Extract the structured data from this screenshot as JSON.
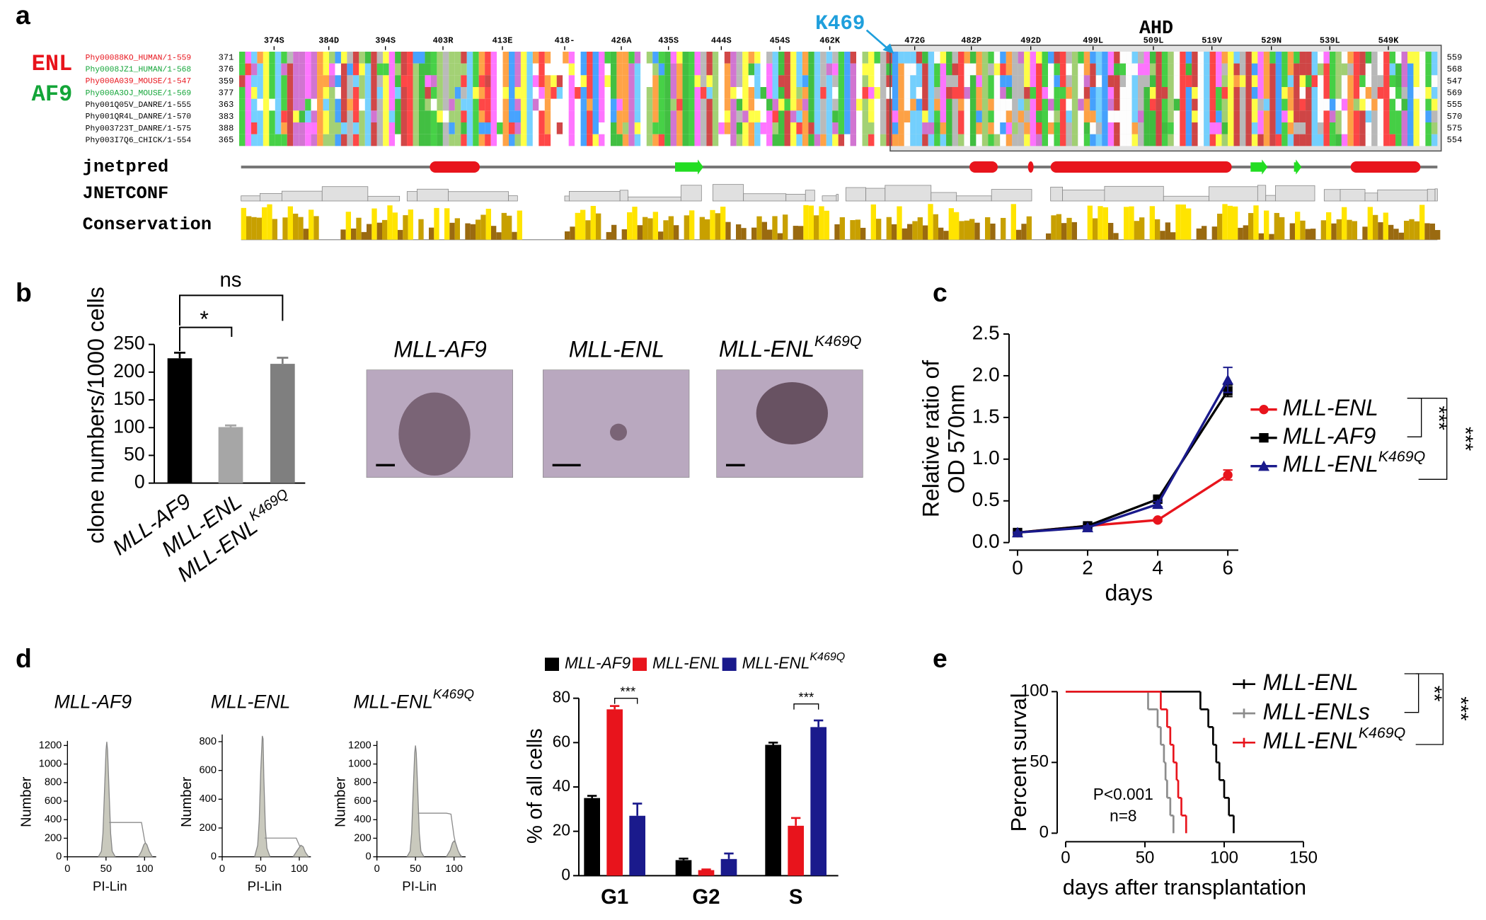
{
  "panel_labels": [
    "a",
    "b",
    "c",
    "d",
    "e"
  ],
  "alignment": {
    "positions": [
      "374S",
      "384D",
      "394S",
      "403R",
      "413E",
      "418-",
      "426A",
      "435S",
      "444S",
      "454S",
      "462K",
      "472G",
      "482P",
      "492D",
      "499L",
      "509L",
      "519V",
      "529N",
      "539L",
      "549K"
    ],
    "groups": [
      {
        "label": "ENL",
        "color": "#e8141c"
      },
      {
        "label": "AF9",
        "color": "#13a538"
      }
    ],
    "mutation": "K469",
    "domain": "AHD",
    "sequences": [
      {
        "name": "Phy00088KO_HUMAN/1-559",
        "start": 371,
        "end": 559,
        "color": "#e8141c"
      },
      {
        "name": "Phy0008JZ1_HUMAN/1-568",
        "start": 376,
        "end": 568,
        "color": "#13a538"
      },
      {
        "name": "Phy000A039_MOUSE/1-547",
        "start": 359,
        "end": 547,
        "color": "#e8141c"
      },
      {
        "name": "Phy000A3OJ_MOUSE/1-569",
        "start": 377,
        "end": 569,
        "color": "#13a538"
      },
      {
        "name": "Phy001Q05V_DANRE/1-555",
        "start": 363,
        "end": 555,
        "color": "#000000"
      },
      {
        "name": "Phy001QR4L_DANRE/1-570",
        "start": 383,
        "end": 570,
        "color": "#000000"
      },
      {
        "name": "Phy003723T_DANRE/1-575",
        "start": 388,
        "end": 575,
        "color": "#000000"
      },
      {
        "name": "Phy003I7Q6_CHICK/1-554",
        "start": 365,
        "end": 554,
        "color": "#000000"
      }
    ],
    "tracks": [
      "jnetpred",
      "JNETCONF",
      "Conservation"
    ]
  },
  "colony_images": [
    "MLL-AF9",
    "MLL-ENL",
    {
      "text": "MLL-ENL",
      "sup": "K469Q"
    }
  ],
  "chart_data": [
    {
      "type": "bar",
      "ylabel": "clone numbers/1000 cells",
      "categories": [
        "MLL-AF9",
        "MLL-ENL",
        {
          "text": "MLL-ENL",
          "sup": "K469Q"
        }
      ],
      "values": [
        225,
        101,
        215
      ],
      "errors": [
        10,
        3,
        11
      ],
      "colors": [
        "#000000",
        "#a6a6a6",
        "#7f7f7f"
      ],
      "ylim": [
        0,
        250
      ],
      "yticks": [
        0,
        50,
        100,
        150,
        200,
        250
      ],
      "annotations": [
        "*",
        "ns"
      ]
    },
    {
      "type": "line",
      "xlabel": "days",
      "ylabel": [
        "Relative ratio of",
        "OD 570nm"
      ],
      "x": [
        0,
        2,
        4,
        6
      ],
      "xlim": [
        0,
        6.3
      ],
      "xticks": [
        0,
        2,
        4,
        6
      ],
      "ylim": [
        0,
        2.5
      ],
      "yticks": [
        {
          "value": 0,
          "label": "0.0"
        },
        0.5,
        {
          "value": 1,
          "label": "1.0"
        },
        1.5,
        {
          "value": 2,
          "label": "2.0"
        },
        2.5
      ],
      "series": [
        {
          "name": "MLL-ENL",
          "color": "#e8141c",
          "marker": "circle",
          "values": [
            0.12,
            0.2,
            0.27,
            0.81
          ],
          "errors": [
            0.005,
            0.02,
            0.015,
            0.06
          ]
        },
        {
          "name": "MLL-AF9",
          "color": "#000000",
          "marker": "square",
          "values": [
            0.12,
            0.2,
            0.52,
            1.82
          ],
          "errors": [
            0.005,
            0.02,
            0.03,
            0.07
          ]
        },
        {
          "name": {
            "text": "MLL-ENL",
            "sup": "K469Q"
          },
          "color": "#1a1a8c",
          "marker": "triangle",
          "values": [
            0.12,
            0.18,
            0.46,
            1.95
          ],
          "errors": [
            0.005,
            0.02,
            0.03,
            0.15
          ]
        }
      ],
      "annotations": [
        "***",
        "***"
      ]
    },
    {
      "type": "area",
      "title": "MLL-AF9",
      "xlabel": "PI-Lin",
      "ylabel": "Number",
      "xlim": [
        0,
        115
      ],
      "xticks": [
        0,
        50,
        100
      ],
      "ylim": [
        0,
        1250
      ],
      "yticks": [
        0,
        200,
        400,
        600,
        800,
        1000,
        1200
      ],
      "series": [
        {
          "color": "#c9c9bd",
          "x": [
            40,
            44,
            46,
            48,
            50,
            51,
            52,
            54,
            56,
            58,
            62
          ],
          "values": [
            0,
            60,
            250,
            700,
            1150,
            1240,
            1150,
            700,
            250,
            60,
            0
          ]
        },
        {
          "color": "#8c8c8c",
          "x": [
            54,
            60,
            90,
            96,
            100,
            104,
            110
          ],
          "values": [
            370,
            370,
            370,
            370,
            180,
            60,
            0
          ]
        },
        {
          "color": "#c9c9bd",
          "x": [
            92,
            96,
            99,
            101,
            103,
            106,
            110
          ],
          "values": [
            0,
            60,
            130,
            150,
            130,
            60,
            0
          ]
        }
      ]
    },
    {
      "type": "area",
      "title": "MLL-ENL",
      "xlabel": "PI-Lin",
      "ylabel": "Number",
      "xlim": [
        0,
        115
      ],
      "xticks": [
        0,
        50,
        100
      ],
      "ylim": [
        0,
        850
      ],
      "yticks": [
        0,
        200,
        400,
        600,
        800
      ],
      "series": [
        {
          "color": "#c9c9bd",
          "x": [
            42,
            46,
            48,
            50,
            52,
            53,
            54,
            56,
            58,
            62
          ],
          "values": [
            0,
            80,
            250,
            600,
            840,
            820,
            550,
            200,
            60,
            0
          ]
        },
        {
          "color": "#8c8c8c",
          "x": [
            55,
            60,
            96,
            100,
            104,
            110
          ],
          "values": [
            130,
            130,
            130,
            80,
            30,
            0
          ]
        },
        {
          "color": "#c9c9bd",
          "x": [
            92,
            98,
            102,
            105,
            108,
            112
          ],
          "values": [
            0,
            50,
            80,
            70,
            30,
            0
          ]
        }
      ]
    },
    {
      "type": "area",
      "title": {
        "text": "MLL-ENL",
        "sup": "K469Q"
      },
      "xlabel": "PI-Lin",
      "ylabel": "Number",
      "xlim": [
        0,
        115
      ],
      "xticks": [
        0,
        50,
        100
      ],
      "ylim": [
        0,
        1250
      ],
      "yticks": [
        0,
        200,
        400,
        600,
        800,
        1000,
        1200
      ],
      "series": [
        {
          "color": "#c9c9bd",
          "x": [
            39,
            43,
            45,
            47,
            49,
            50,
            51,
            53,
            55,
            57,
            61
          ],
          "values": [
            0,
            60,
            250,
            700,
            1120,
            1200,
            1120,
            700,
            250,
            60,
            0
          ]
        },
        {
          "color": "#8c8c8c",
          "x": [
            53,
            60,
            90,
            96,
            100,
            104,
            110
          ],
          "values": [
            470,
            470,
            470,
            460,
            220,
            70,
            0
          ]
        },
        {
          "color": "#c9c9bd",
          "x": [
            90,
            95,
            98,
            100,
            102,
            105,
            109
          ],
          "values": [
            0,
            70,
            150,
            170,
            150,
            70,
            0
          ]
        }
      ]
    },
    {
      "type": "grouped_bar",
      "ylabel": "% of all cells",
      "categories": [
        "G1",
        "G2",
        "S"
      ],
      "ylim": [
        0,
        80
      ],
      "yticks": [
        0,
        20,
        40,
        60,
        80
      ],
      "series": [
        {
          "name": "MLL-AF9",
          "color": "#000000",
          "values": [
            35,
            7,
            59
          ],
          "errors": [
            1,
            0.7,
            1
          ]
        },
        {
          "name": "MLL-ENL",
          "color": "#e8141c",
          "values": [
            75,
            2.5,
            22.5
          ],
          "errors": [
            1.5,
            0.3,
            3.5
          ]
        },
        {
          "name": {
            "text": "MLL-ENL",
            "sup": "K469Q"
          },
          "color": "#1a1a8c",
          "values": [
            27,
            7.5,
            67
          ],
          "errors": [
            5.5,
            2.5,
            3
          ]
        }
      ],
      "annotations": [
        "***",
        "***"
      ]
    },
    {
      "type": "step",
      "xlabel": "days after transplantation",
      "ylabel": "Percent surval",
      "xlim": [
        0,
        150
      ],
      "xticks": [
        0,
        50,
        100,
        150
      ],
      "ylim": [
        0,
        100
      ],
      "yticks": [
        0,
        50,
        100
      ],
      "series": [
        {
          "name": "MLL-ENL",
          "color": "#000000",
          "x": [
            0,
            85,
            90,
            93,
            95,
            97,
            100,
            103,
            106
          ],
          "values": [
            100,
            87.5,
            75,
            62.5,
            50,
            37.5,
            25,
            12.5,
            0
          ]
        },
        {
          "name": "MLL-ENLs",
          "color": "#8c8c8c",
          "x": [
            0,
            52,
            58,
            60,
            62,
            63,
            64,
            66,
            68
          ],
          "values": [
            100,
            87.5,
            75,
            62.5,
            50,
            37.5,
            25,
            12.5,
            0
          ]
        },
        {
          "name": {
            "text": "MLL-ENL",
            "sup": "K469Q"
          },
          "color": "#e8141c",
          "x": [
            0,
            60,
            64,
            66,
            68,
            70,
            71,
            73,
            76
          ],
          "values": [
            100,
            87.5,
            75,
            62.5,
            50,
            37.5,
            25,
            12.5,
            0
          ]
        }
      ],
      "annotations": [
        "P<0.001",
        "n=8",
        "**",
        "***"
      ]
    }
  ]
}
